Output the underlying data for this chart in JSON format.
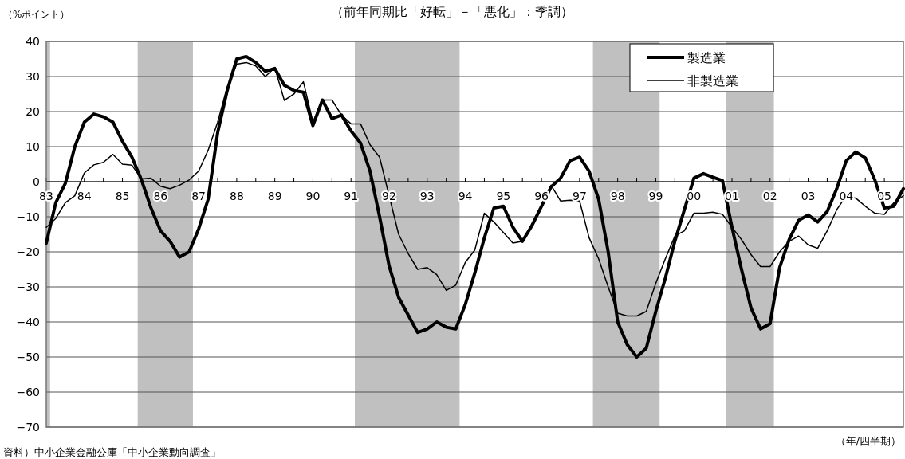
{
  "chart_data": {
    "type": "line",
    "title": "（前年同期比「好転」－「悪化」：季調）",
    "ylabel": "（%ポイント）",
    "xlabel": "（年/四半期）",
    "annotations": [
      "資料）中小企業金融公庫「中小企業動向調査」"
    ],
    "x": [
      1983,
      1983.25,
      1983.5,
      1983.75,
      1984,
      1984.25,
      1984.5,
      1984.75,
      1985,
      1985.25,
      1985.5,
      1985.75,
      1986,
      1986.25,
      1986.5,
      1986.75,
      1987,
      1987.25,
      1987.5,
      1987.75,
      1988,
      1988.25,
      1988.5,
      1988.75,
      1989,
      1989.25,
      1989.5,
      1989.75,
      1990,
      1990.25,
      1990.5,
      1990.75,
      1991,
      1991.25,
      1991.5,
      1991.75,
      1992,
      1992.25,
      1992.5,
      1992.75,
      1993,
      1993.25,
      1993.5,
      1993.75,
      1994,
      1994.25,
      1994.5,
      1994.75,
      1995,
      1995.25,
      1995.5,
      1995.75,
      1996,
      1996.25,
      1996.5,
      1996.75,
      1997,
      1997.25,
      1997.5,
      1997.75,
      1998,
      1998.25,
      1998.5,
      1998.75,
      1999,
      1999.25,
      1999.5,
      1999.75,
      2000,
      2000.25,
      2000.5,
      2000.75,
      2001,
      2001.25,
      2001.5,
      2001.75,
      2002,
      2002.25,
      2002.5,
      2002.75,
      2003,
      2003.25,
      2003.5,
      2003.75,
      2004,
      2004.25,
      2004.5,
      2004.75,
      2005,
      2005.25,
      2005.5
    ],
    "series": [
      {
        "name": "製造業",
        "color": "#000000",
        "values": [
          -17.5,
          -6,
          -0.5,
          10,
          17,
          19.3,
          18.5,
          17,
          11.5,
          7,
          0.5,
          -7.5,
          -14,
          -17,
          -21.5,
          -20,
          -13.5,
          -5,
          14,
          26,
          35,
          35.7,
          34,
          31.5,
          32.3,
          27.5,
          26,
          25.5,
          16,
          23.3,
          18,
          19,
          14.5,
          11,
          3,
          -10,
          -24,
          -33,
          -38,
          -43,
          -42,
          -40,
          -41.5,
          -42,
          -35,
          -26,
          -16,
          -7.5,
          -7,
          -13,
          -17,
          -12.5,
          -7,
          -1.5,
          1,
          6,
          7,
          3,
          -5,
          -20,
          -40,
          -46.5,
          -50,
          -47.5,
          -37,
          -27.5,
          -17,
          -8,
          1,
          2.3,
          1.3,
          0.3,
          -13,
          -25,
          -36,
          -42,
          -40.5,
          -24.5,
          -16.5,
          -11,
          -9.5,
          -11.5,
          -8.5,
          -2,
          6,
          8.5,
          6.8,
          0.5,
          -7.5,
          -7,
          -2
        ]
      },
      {
        "name": "非製造業",
        "color": "#000000",
        "values": [
          -13,
          -10.5,
          -6,
          -4,
          2.5,
          4.8,
          5.5,
          7.8,
          5,
          4.7,
          0.8,
          1,
          -1.3,
          -2,
          -1,
          0.5,
          3,
          9,
          17,
          27,
          33.5,
          34,
          33,
          30,
          32.5,
          23.2,
          25,
          28.5,
          17,
          23.3,
          23.3,
          19,
          16.5,
          16.5,
          10.5,
          7,
          -4,
          -15,
          -20.5,
          -25,
          -24.5,
          -26.5,
          -31,
          -29.5,
          -23,
          -19.5,
          -9,
          -11.5,
          -14.5,
          -17.5,
          -17,
          -12,
          -7,
          -1,
          -5.5,
          -5.3,
          -5.5,
          -16,
          -22,
          -30,
          -37.5,
          -38.3,
          -38.3,
          -37,
          -29,
          -22,
          -15.5,
          -14,
          -9,
          -9,
          -8.7,
          -9.3,
          -13,
          -16.5,
          -20.8,
          -24.2,
          -24.2,
          -20,
          -17,
          -15.5,
          -18,
          -19,
          -14,
          -8,
          -4,
          -4.7,
          -7,
          -9,
          -9.3,
          -6,
          -4
        ]
      }
    ],
    "xlim": [
      1983,
      2005.5
    ],
    "xticks": [
      {
        "value": 1983,
        "label": "83"
      },
      {
        "value": 1983.5,
        "label": null
      },
      {
        "value": 1984,
        "label": "84"
      },
      {
        "value": 1984.5,
        "label": null
      },
      {
        "value": 1985,
        "label": "85"
      },
      {
        "value": 1985.5,
        "label": null
      },
      {
        "value": 1986,
        "label": "86"
      },
      {
        "value": 1986.5,
        "label": null
      },
      {
        "value": 1987,
        "label": "87"
      },
      {
        "value": 1987.5,
        "label": null
      },
      {
        "value": 1988,
        "label": "88"
      },
      {
        "value": 1988.5,
        "label": null
      },
      {
        "value": 1989,
        "label": "89"
      },
      {
        "value": 1989.5,
        "label": null
      },
      {
        "value": 1990,
        "label": "90"
      },
      {
        "value": 1990.5,
        "label": null
      },
      {
        "value": 1991,
        "label": "91"
      },
      {
        "value": 1991.5,
        "label": null
      },
      {
        "value": 1992,
        "label": "92"
      },
      {
        "value": 1992.5,
        "label": null
      },
      {
        "value": 1993,
        "label": "93"
      },
      {
        "value": 1993.5,
        "label": null
      },
      {
        "value": 1994,
        "label": "94"
      },
      {
        "value": 1994.5,
        "label": null
      },
      {
        "value": 1995,
        "label": "95"
      },
      {
        "value": 1995.5,
        "label": null
      },
      {
        "value": 1996,
        "label": "96"
      },
      {
        "value": 1996.5,
        "label": null
      },
      {
        "value": 1997,
        "label": "97"
      },
      {
        "value": 1997.5,
        "label": null
      },
      {
        "value": 1998,
        "label": "98"
      },
      {
        "value": 1998.5,
        "label": null
      },
      {
        "value": 1999,
        "label": "99"
      },
      {
        "value": 1999.5,
        "label": null
      },
      {
        "value": 2000,
        "label": "00"
      },
      {
        "value": 2000.5,
        "label": null
      },
      {
        "value": 2001,
        "label": "01"
      },
      {
        "value": 2001.5,
        "label": null
      },
      {
        "value": 2002,
        "label": "02"
      },
      {
        "value": 2002.5,
        "label": null
      },
      {
        "value": 2003,
        "label": "03"
      },
      {
        "value": 2003.5,
        "label": null
      },
      {
        "value": 2004,
        "label": "04"
      },
      {
        "value": 2004.5,
        "label": null
      },
      {
        "value": 2005,
        "label": "05"
      }
    ],
    "ylim": [
      -70,
      40
    ],
    "yticks": [
      -70,
      -60,
      -50,
      -40,
      -30,
      -20,
      -10,
      0,
      10,
      20,
      30,
      40
    ],
    "bands": [
      {
        "axis": "x",
        "from": 1983,
        "to": 1983.1,
        "color": "#c0c0c0"
      },
      {
        "axis": "x",
        "from": 1985.4,
        "to": 1986.85,
        "color": "#c0c0c0"
      },
      {
        "axis": "x",
        "from": 1991.1,
        "to": 1993.85,
        "color": "#c0c0c0"
      },
      {
        "axis": "x",
        "from": 1997.35,
        "to": 1999.1,
        "color": "#c0c0c0"
      },
      {
        "axis": "x",
        "from": 2000.85,
        "to": 2002.1,
        "color": "#c0c0c0"
      }
    ],
    "grid": "y",
    "legend": "top right",
    "marker": "none",
    "line_style": "solid"
  }
}
